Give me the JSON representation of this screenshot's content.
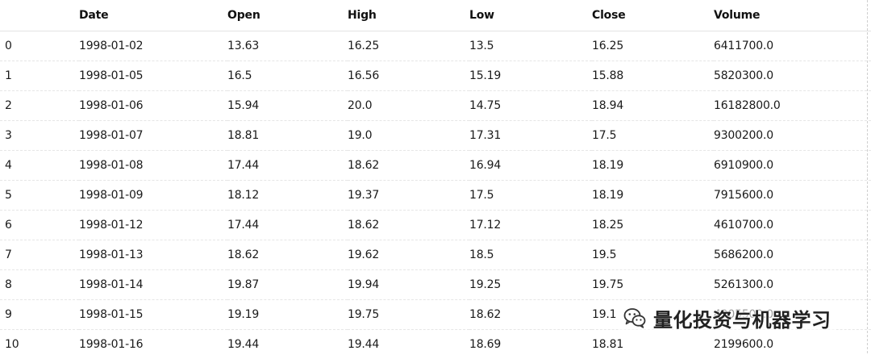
{
  "table": {
    "columns": [
      "Date",
      "Open",
      "High",
      "Low",
      "Close",
      "Volume"
    ],
    "rows": [
      {
        "index": "0",
        "cells": [
          "1998-01-02",
          "13.63",
          "16.25",
          "13.5",
          "16.25",
          "6411700.0"
        ]
      },
      {
        "index": "1",
        "cells": [
          "1998-01-05",
          "16.5",
          "16.56",
          "15.19",
          "15.88",
          "5820300.0"
        ]
      },
      {
        "index": "2",
        "cells": [
          "1998-01-06",
          "15.94",
          "20.0",
          "14.75",
          "18.94",
          "16182800.0"
        ]
      },
      {
        "index": "3",
        "cells": [
          "1998-01-07",
          "18.81",
          "19.0",
          "17.31",
          "17.5",
          "9300200.0"
        ]
      },
      {
        "index": "4",
        "cells": [
          "1998-01-08",
          "17.44",
          "18.62",
          "16.94",
          "18.19",
          "6910900.0"
        ]
      },
      {
        "index": "5",
        "cells": [
          "1998-01-09",
          "18.12",
          "19.37",
          "17.5",
          "18.19",
          "7915600.0"
        ]
      },
      {
        "index": "6",
        "cells": [
          "1998-01-12",
          "17.44",
          "18.62",
          "17.12",
          "18.25",
          "4610700.0"
        ]
      },
      {
        "index": "7",
        "cells": [
          "1998-01-13",
          "18.62",
          "19.62",
          "18.5",
          "19.5",
          "5686200.0"
        ]
      },
      {
        "index": "8",
        "cells": [
          "1998-01-14",
          "19.87",
          "19.94",
          "19.25",
          "19.75",
          "5261300.0"
        ]
      },
      {
        "index": "9",
        "cells": [
          "1998-01-15",
          "19.19",
          "19.75",
          "18.62",
          "19.1",
          "4905500.0"
        ]
      },
      {
        "index": "10",
        "cells": [
          "1998-01-16",
          "19.44",
          "19.44",
          "18.69",
          "18.81",
          "2199600.0"
        ]
      }
    ]
  },
  "watermark": {
    "text": "量化投资与机器学习",
    "icon": "wechat-icon"
  }
}
